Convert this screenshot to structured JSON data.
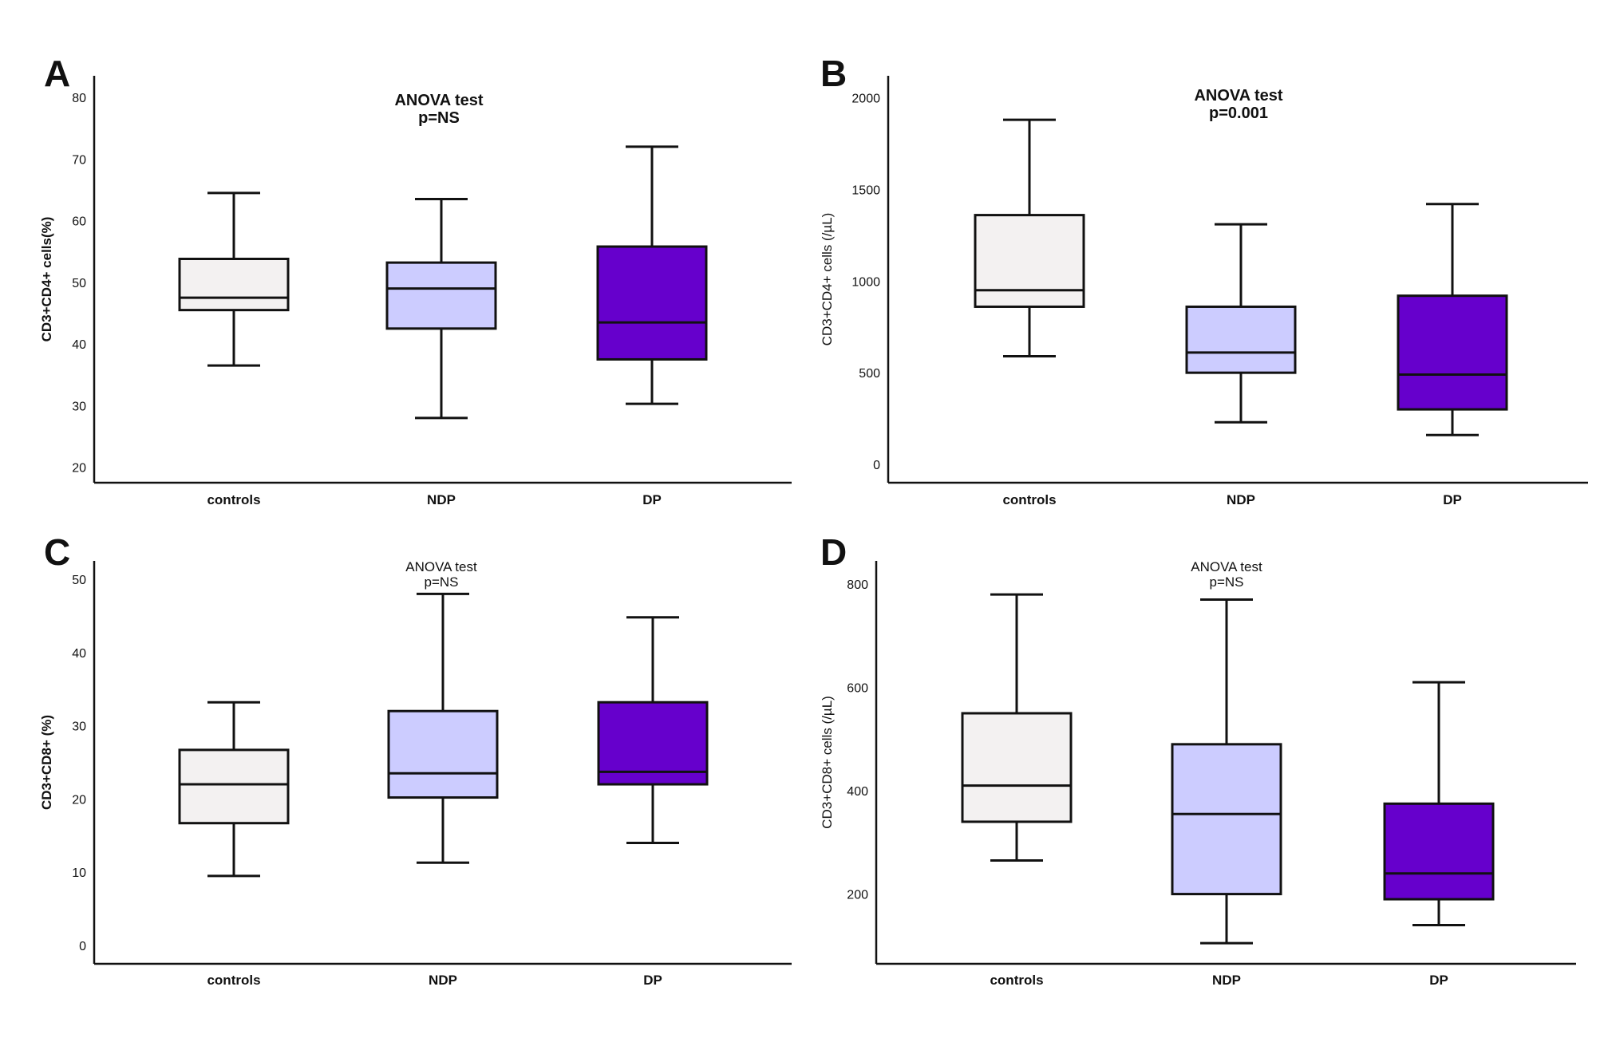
{
  "colors": {
    "controls": "#f3f1f1",
    "NDP": "#ccccff",
    "DP": "#6600cc",
    "stroke": "#111111"
  },
  "chart_data": [
    {
      "panel_label": "A",
      "type": "box",
      "ylabel": "CD3+CD4+ cells(%)",
      "annotation": [
        "ANOVA test",
        "p=NS"
      ],
      "annotation_bold": true,
      "ylim": [
        17.5,
        83.5
      ],
      "yticks": [
        "20",
        "30",
        "40",
        "50",
        "60",
        "70",
        "80"
      ],
      "categories": [
        "controls",
        "NDP",
        "DP"
      ],
      "boxes": [
        {
          "min": 36.5,
          "q1": 45.5,
          "median": 47.5,
          "q3": 53.8,
          "max": 64.5
        },
        {
          "min": 28,
          "q1": 42.5,
          "median": 49,
          "q3": 53.2,
          "max": 63.5
        },
        {
          "min": 30.3,
          "q1": 37.5,
          "median": 43.5,
          "q3": 55.8,
          "max": 72
        }
      ]
    },
    {
      "panel_label": "B",
      "type": "box",
      "ylabel": "CD3+CD4+ cells (/µL)",
      "annotation": [
        "ANOVA test",
        "p=0.001"
      ],
      "annotation_bold": true,
      "ylim": [
        -100,
        2120
      ],
      "yticks": [
        "0",
        "500",
        "1000",
        "1500",
        "2000"
      ],
      "categories": [
        "controls",
        "NDP",
        "DP"
      ],
      "boxes": [
        {
          "min": 590,
          "q1": 860,
          "median": 950,
          "q3": 1360,
          "max": 1880
        },
        {
          "min": 230,
          "q1": 500,
          "median": 610,
          "q3": 860,
          "max": 1310
        },
        {
          "min": 160,
          "q1": 300,
          "median": 490,
          "q3": 920,
          "max": 1420
        }
      ]
    },
    {
      "panel_label": "C",
      "type": "box",
      "ylabel": "CD3+CD8+ (%)",
      "annotation": [
        "ANOVA test",
        "p=NS"
      ],
      "annotation_bold": false,
      "ylim": [
        -2.5,
        52.5
      ],
      "yticks": [
        "0",
        "10",
        "20",
        "30",
        "40",
        "50"
      ],
      "categories": [
        "controls",
        "NDP",
        "DP"
      ],
      "boxes": [
        {
          "min": 9.5,
          "q1": 16.7,
          "median": 22,
          "q3": 26.7,
          "max": 33.2
        },
        {
          "min": 11.3,
          "q1": 20.2,
          "median": 23.5,
          "q3": 32,
          "max": 48
        },
        {
          "min": 14,
          "q1": 22,
          "median": 23.7,
          "q3": 33.2,
          "max": 44.8
        }
      ]
    },
    {
      "panel_label": "D",
      "type": "box",
      "ylabel": "CD3+CD8+ cells (/µL)",
      "annotation": [
        "ANOVA test",
        "p=NS"
      ],
      "annotation_bold": false,
      "ylim": [
        65,
        845
      ],
      "yticks": [
        "200",
        "400",
        "600",
        "800"
      ],
      "categories": [
        "controls",
        "NDP",
        "DP"
      ],
      "boxes": [
        {
          "min": 265,
          "q1": 340,
          "median": 410,
          "q3": 550,
          "max": 780
        },
        {
          "min": 105,
          "q1": 200,
          "median": 355,
          "q3": 490,
          "max": 770
        },
        {
          "min": 140,
          "q1": 190,
          "median": 240,
          "q3": 375,
          "max": 610
        }
      ]
    }
  ]
}
